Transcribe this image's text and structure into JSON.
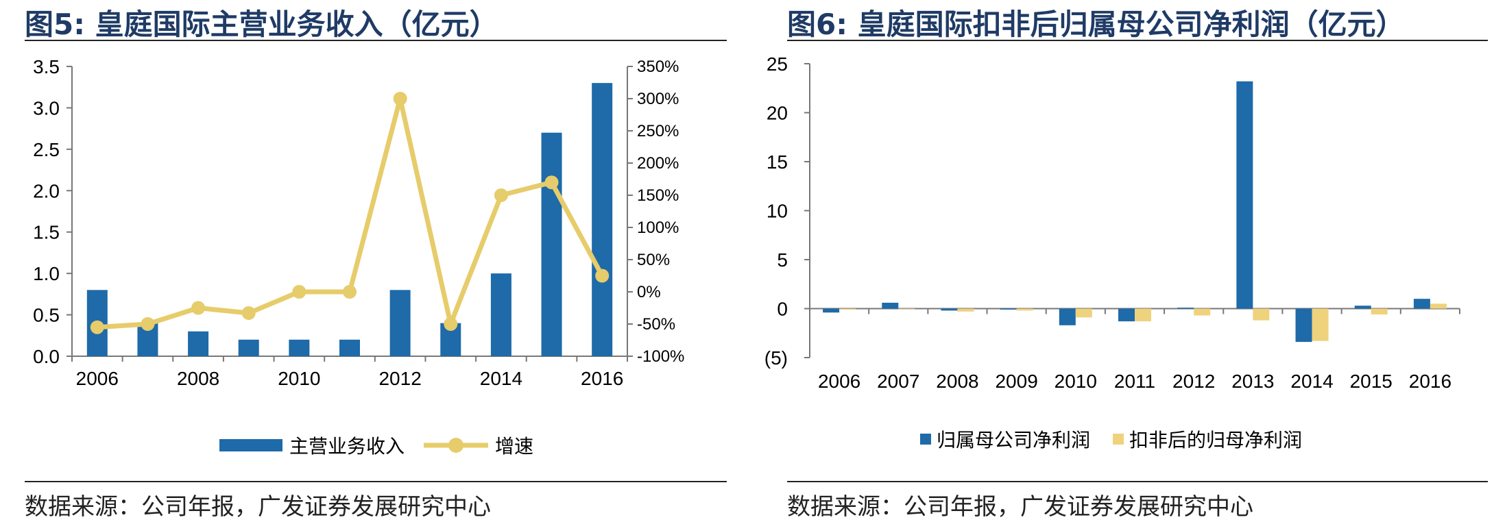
{
  "panels": {
    "left": {
      "title": "图5:  皇庭国际主营业务收入（亿元）",
      "source": "数据来源：公司年报，广发证券发展研究中心"
    },
    "right": {
      "title": "图6:  皇庭国际扣非后归属母公司净利润（亿元）",
      "source": "数据来源：公司年报，广发证券发展研究中心"
    }
  },
  "chart_data": [
    {
      "type": "bar+line",
      "categories": [
        "2006",
        "2007",
        "2008",
        "2009",
        "2010",
        "2011",
        "2012",
        "2013",
        "2014",
        "2015",
        "2016"
      ],
      "x_tick_labels": [
        "2006",
        "2008",
        "2010",
        "2012",
        "2014",
        "2016"
      ],
      "series": [
        {
          "name": "主营业务收入",
          "type": "bar",
          "axis": "left",
          "color": "#1f6aa8",
          "values": [
            0.8,
            0.4,
            0.3,
            0.2,
            0.2,
            0.2,
            0.8,
            0.4,
            1.0,
            2.7,
            3.3
          ]
        },
        {
          "name": "增速",
          "type": "line",
          "axis": "right",
          "color": "#e6cc6a",
          "values": [
            -55,
            -50,
            -25,
            -33,
            0,
            0,
            300,
            -50,
            150,
            170,
            25
          ]
        }
      ],
      "y_left": {
        "min": 0,
        "max": 3.5,
        "step": 0.5,
        "ticks": [
          "0.0",
          "0.5",
          "1.0",
          "1.5",
          "2.0",
          "2.5",
          "3.0",
          "3.5"
        ]
      },
      "y_right": {
        "min": -100,
        "max": 350,
        "step": 50,
        "ticks": [
          "-100%",
          "-50%",
          "0%",
          "50%",
          "100%",
          "150%",
          "200%",
          "250%",
          "300%",
          "350%"
        ]
      },
      "legend_position": "bottom"
    },
    {
      "type": "bar",
      "categories": [
        "2006",
        "2007",
        "2008",
        "2009",
        "2010",
        "2011",
        "2012",
        "2013",
        "2014",
        "2015",
        "2016"
      ],
      "series": [
        {
          "name": "归属母公司净利润",
          "color": "#1f6aa8",
          "values": [
            -0.4,
            0.6,
            -0.2,
            -0.1,
            -1.7,
            -1.3,
            0.1,
            23.2,
            -3.4,
            0.3,
            1.0
          ]
        },
        {
          "name": "扣非后的归母净利润",
          "color": "#efd27c",
          "values": [
            -0.1,
            0.0,
            -0.3,
            -0.2,
            -0.9,
            -1.3,
            -0.7,
            -1.2,
            -3.3,
            -0.6,
            0.5
          ]
        }
      ],
      "y": {
        "min": -5,
        "max": 25,
        "step": 5,
        "ticks": [
          "(5)",
          "0",
          "5",
          "10",
          "15",
          "20",
          "25"
        ]
      },
      "legend_position": "bottom"
    }
  ]
}
